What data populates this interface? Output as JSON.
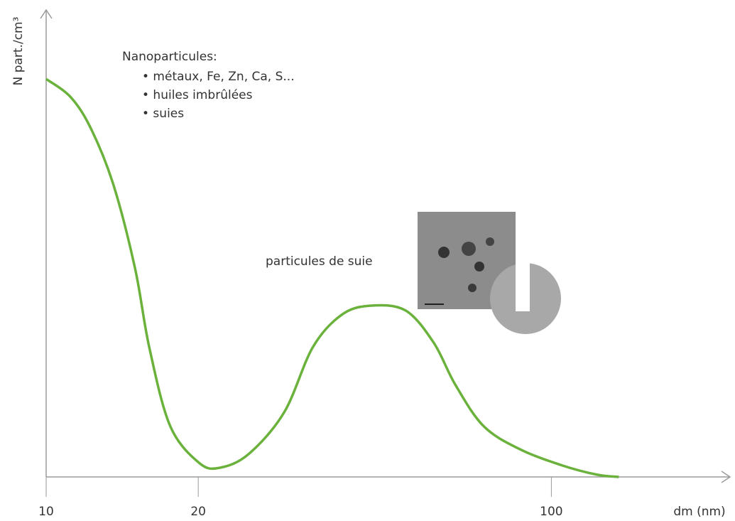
{
  "chart_data": {
    "type": "line",
    "y_label": "N part./cm³",
    "x_label": "dm (nm)",
    "x_scale": "log",
    "xlim": [
      10,
      220
    ],
    "xticks": [
      10,
      20,
      100
    ],
    "ylim": [
      0,
      100
    ],
    "annotation_title": "Nanoparticules:",
    "annotation_items": [
      "• métaux, Fe, Zn, Ca, S...",
      "• huiles imbrûlées",
      "• suies"
    ],
    "peak_label": "particules de suie",
    "series": [
      {
        "color": "#6ab23c",
        "x": [
          10,
          11.2,
          12.3,
          13.6,
          15,
          16,
          17.6,
          20.1,
          22.1,
          25.2,
          29.6,
          33.7,
          38.4,
          43.7,
          51.4,
          58.5,
          64.5,
          73.4,
          86.6,
          105,
          123,
          136
        ],
        "values": [
          86,
          82,
          75,
          63,
          45,
          28,
          11,
          3,
          2,
          5,
          14,
          28,
          35,
          37,
          36,
          29,
          20,
          11,
          6,
          2.5,
          0.5,
          0
        ]
      }
    ]
  }
}
